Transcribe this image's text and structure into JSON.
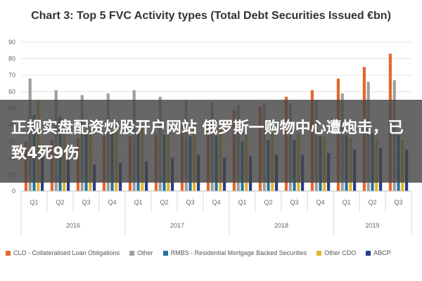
{
  "overlay": {
    "text": "正规实盘配资炒股开户网站 俄罗斯一购物中心遭炮击，已致4死9伤"
  },
  "chart_data": {
    "type": "bar",
    "title": "Chart 3: Top 5 FVC Activity types (Total Debt Securities Issued €bn)",
    "xlabel": "",
    "ylabel": "",
    "ylim": [
      0,
      90
    ],
    "yticks": [
      0,
      10,
      20,
      30,
      40,
      50,
      60,
      70,
      80,
      90
    ],
    "categories": [
      "Q1",
      "Q2",
      "Q3",
      "Q4",
      "Q1",
      "Q2",
      "Q3",
      "Q4",
      "Q1",
      "Q2",
      "Q3",
      "Q4",
      "Q1",
      "Q2",
      "Q3"
    ],
    "groups": [
      {
        "label": "2016",
        "span": 4
      },
      {
        "label": "2017",
        "span": 4
      },
      {
        "label": "2018",
        "span": 4
      },
      {
        "label": "2019",
        "span": 3
      }
    ],
    "grid": true,
    "legend_position": "bottom",
    "series": [
      {
        "name": "CLO - Collateralised Loan Obligations",
        "color": "#e2682d",
        "values": [
          30,
          31,
          32,
          33,
          33,
          34,
          40,
          42,
          49,
          51,
          57,
          61,
          68,
          75,
          83
        ]
      },
      {
        "name": "Other",
        "color": "#9e9e9e",
        "values": [
          68,
          61,
          58,
          59,
          61,
          57,
          55,
          54,
          52,
          53,
          53,
          55,
          59,
          66,
          67
        ]
      },
      {
        "name": "RMBS - Residential Mortgage Backed Securities",
        "color": "#25739c",
        "values": [
          46,
          45,
          35,
          36,
          35,
          34,
          33,
          33,
          30,
          31,
          31,
          33,
          34,
          35,
          34
        ]
      },
      {
        "name": "Other CDO",
        "color": "#e3b52b",
        "values": [
          55,
          42,
          41,
          40,
          40,
          39,
          40,
          39,
          34,
          35,
          35,
          33,
          32,
          32,
          31
        ]
      },
      {
        "name": "ABCP",
        "color": "#273d8c",
        "values": [
          21,
          19,
          16,
          17,
          18,
          20,
          22,
          20,
          21,
          22,
          22,
          23,
          25,
          26,
          25
        ]
      }
    ]
  }
}
